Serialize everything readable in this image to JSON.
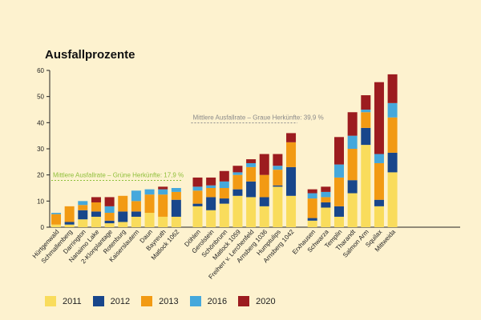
{
  "chart_data": {
    "type": "bar",
    "stacked": true,
    "title": "Ausfallprozente",
    "ylim": [
      0,
      60
    ],
    "yticks": [
      0,
      10,
      20,
      30,
      40,
      50,
      60
    ],
    "gridlines": false,
    "legend_position": "bottom",
    "groups": [
      [
        "Hürtgenwald",
        "Schmallenberg",
        "Darrington",
        "Nanaimo Lake",
        "2-Klonplantage",
        "Rotenburg",
        "Kaiserslautern",
        "Daun",
        "Bayreuth",
        "Matlock 1062"
      ],
      [
        "Döhlen",
        "Gerolstein",
        "Schönbrunn",
        "Matlock 1059",
        "Freiherr v. Lerchenfeld",
        "Arnsberg 1036",
        "Humptulips",
        "Arnsberg 1042"
      ],
      [
        "Erxhausen",
        "Schwarza",
        "Templin",
        "Tharandt",
        "Salmon Arm",
        "Squilax",
        "Mittweida"
      ]
    ],
    "categories": [
      "Hürtgenwald",
      "Schmallenberg",
      "Darrington",
      "Nanaimo Lake",
      "2-Klonplantage",
      "Rotenburg",
      "Kaiserslautern",
      "Daun",
      "Bayreuth",
      "Matlock 1062",
      "Döhlen",
      "Gerolstein",
      "Schönbrunn",
      "Matlock 1059",
      "Freiherr v. Lerchenfeld",
      "Arnsberg 1036",
      "Humptulips",
      "Arnsberg 1042",
      "Erxhausen",
      "Schwarza",
      "Templin",
      "Tharandt",
      "Salmon Arm",
      "Squilax",
      "Mittweida"
    ],
    "series": [
      {
        "name": "2011",
        "color": "#f9dc5c",
        "values": [
          1,
          1,
          3,
          4,
          1.5,
          2,
          4,
          5.5,
          4,
          4,
          8,
          6.5,
          9,
          12,
          11.5,
          8,
          15.5,
          12,
          2.5,
          7.5,
          4,
          13,
          31.5,
          8,
          21
        ]
      },
      {
        "name": "2012",
        "color": "#18468b",
        "values": [
          0,
          1,
          3.5,
          2,
          1,
          4,
          2,
          0,
          0,
          6.5,
          1,
          5,
          2,
          2.5,
          6,
          3.5,
          0.5,
          11,
          1,
          2,
          4,
          5,
          6.5,
          2.5,
          7.5
        ]
      },
      {
        "name": "2013",
        "color": "#f29a13",
        "values": [
          4,
          6,
          2,
          3.5,
          3,
          6,
          4,
          7,
          8.5,
          3,
          5,
          3.5,
          4,
          5.5,
          5.5,
          8.5,
          6,
          9.5,
          7.5,
          2,
          11,
          12,
          6,
          14,
          13.5
        ]
      },
      {
        "name": "2016",
        "color": "#45a8dc",
        "values": [
          0.5,
          0,
          1.5,
          0,
          2.5,
          0,
          4,
          2,
          2,
          1.5,
          1.5,
          1,
          2.5,
          1,
          1.5,
          0,
          1.5,
          0,
          2,
          2,
          5,
          5,
          1,
          3.5,
          5.5
        ]
      },
      {
        "name": "2020",
        "color": "#9c1c1f",
        "values": [
          0,
          0,
          0,
          2,
          3.5,
          0,
          0,
          0,
          1,
          0,
          3.5,
          3,
          4,
          2.5,
          1.5,
          8,
          4.5,
          3.5,
          1.5,
          2,
          10.5,
          9,
          5.5,
          27.5,
          11
        ]
      }
    ],
    "reference_lines": [
      {
        "label": "Mittlere Ausfallrate – Graue Herkünfte: 39,9 %",
        "value": 39.9,
        "color": "#8a8a8a",
        "group": 1
      },
      {
        "label": "Mittlere Ausfallrate – Grüne Herkünfte: 17,9 %",
        "value": 17.9,
        "color": "#8fbf3a",
        "group": 0
      }
    ]
  }
}
